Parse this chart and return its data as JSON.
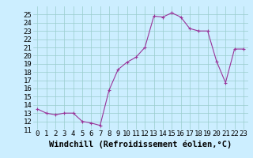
{
  "x": [
    0,
    1,
    2,
    3,
    4,
    5,
    6,
    7,
    8,
    9,
    10,
    11,
    12,
    13,
    14,
    15,
    16,
    17,
    18,
    19,
    20,
    21,
    22,
    23
  ],
  "y": [
    13.5,
    13.0,
    12.8,
    13.0,
    13.0,
    12.0,
    11.8,
    11.5,
    15.8,
    18.3,
    19.2,
    19.8,
    21.0,
    24.8,
    24.7,
    25.2,
    24.7,
    23.3,
    23.0,
    23.0,
    19.3,
    16.7,
    20.8,
    20.8
  ],
  "line_color": "#993399",
  "marker": "+",
  "marker_color": "#993399",
  "bg_color": "#cceeff",
  "grid_color": "#99cccc",
  "xlabel": "Windchill (Refroidissement éolien,°C)",
  "xlabel_fontsize": 7.5,
  "tick_fontsize": 6.5,
  "xlim": [
    -0.5,
    23.5
  ],
  "ylim": [
    11,
    26
  ],
  "yticks": [
    11,
    12,
    13,
    14,
    15,
    16,
    17,
    18,
    19,
    20,
    21,
    22,
    23,
    24,
    25
  ],
  "xticks": [
    0,
    1,
    2,
    3,
    4,
    5,
    6,
    7,
    8,
    9,
    10,
    11,
    12,
    13,
    14,
    15,
    16,
    17,
    18,
    19,
    20,
    21,
    22,
    23
  ]
}
